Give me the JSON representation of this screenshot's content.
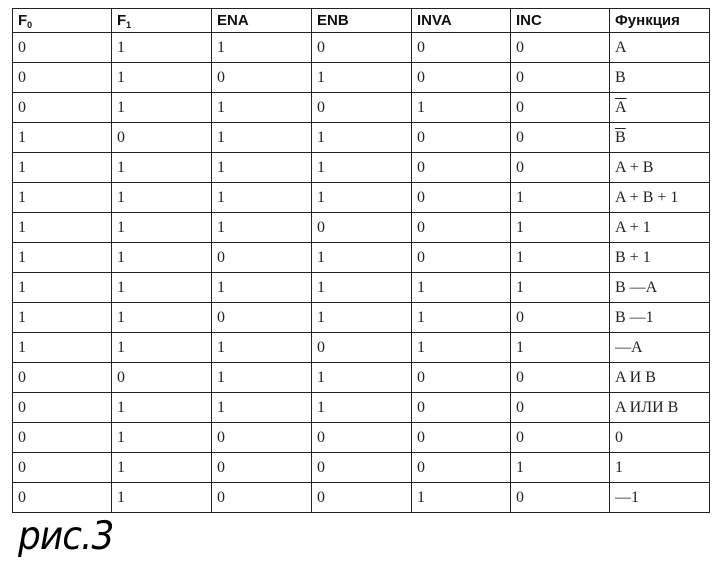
{
  "table": {
    "headers": [
      {
        "base": "F",
        "sub": "0"
      },
      {
        "base": "F",
        "sub": "1"
      },
      {
        "base": "ENA"
      },
      {
        "base": "ENB"
      },
      {
        "base": "INVA"
      },
      {
        "base": "INC"
      },
      {
        "base": "Функция"
      }
    ],
    "rows": [
      {
        "cells": [
          "0",
          "1",
          "1",
          "0",
          "0",
          "0"
        ],
        "func": "A",
        "overline": false
      },
      {
        "cells": [
          "0",
          "1",
          "0",
          "1",
          "0",
          "0"
        ],
        "func": "B",
        "overline": false
      },
      {
        "cells": [
          "0",
          "1",
          "1",
          "0",
          "1",
          "0"
        ],
        "func": "A",
        "overline": true
      },
      {
        "cells": [
          "1",
          "0",
          "1",
          "1",
          "0",
          "0"
        ],
        "func": "B",
        "overline": true
      },
      {
        "cells": [
          "1",
          "1",
          "1",
          "1",
          "0",
          "0"
        ],
        "func": "A + B",
        "overline": false
      },
      {
        "cells": [
          "1",
          "1",
          "1",
          "1",
          "0",
          "1"
        ],
        "func": "A + B + 1",
        "overline": false
      },
      {
        "cells": [
          "1",
          "1",
          "1",
          "0",
          "0",
          "1"
        ],
        "func": "A + 1",
        "overline": false
      },
      {
        "cells": [
          "1",
          "1",
          "0",
          "1",
          "0",
          "1"
        ],
        "func": "B + 1",
        "overline": false
      },
      {
        "cells": [
          "1",
          "1",
          "1",
          "1",
          "1",
          "1"
        ],
        "func": "B —A",
        "overline": false
      },
      {
        "cells": [
          "1",
          "1",
          "0",
          "1",
          "1",
          "0"
        ],
        "func": "B —1",
        "overline": false
      },
      {
        "cells": [
          "1",
          "1",
          "1",
          "0",
          "1",
          "1"
        ],
        "func": "—A",
        "overline": false
      },
      {
        "cells": [
          "0",
          "0",
          "1",
          "1",
          "0",
          "0"
        ],
        "func": "A И B",
        "overline": false
      },
      {
        "cells": [
          "0",
          "1",
          "1",
          "1",
          "0",
          "0"
        ],
        "func": "A ИЛИ B",
        "overline": false
      },
      {
        "cells": [
          "0",
          "1",
          "0",
          "0",
          "0",
          "0"
        ],
        "func": "0",
        "overline": false
      },
      {
        "cells": [
          "0",
          "1",
          "0",
          "0",
          "0",
          "1"
        ],
        "func": "1",
        "overline": false
      },
      {
        "cells": [
          "0",
          "1",
          "0",
          "0",
          "1",
          "0"
        ],
        "func": "—1",
        "overline": false
      }
    ]
  },
  "caption": "рис.3"
}
